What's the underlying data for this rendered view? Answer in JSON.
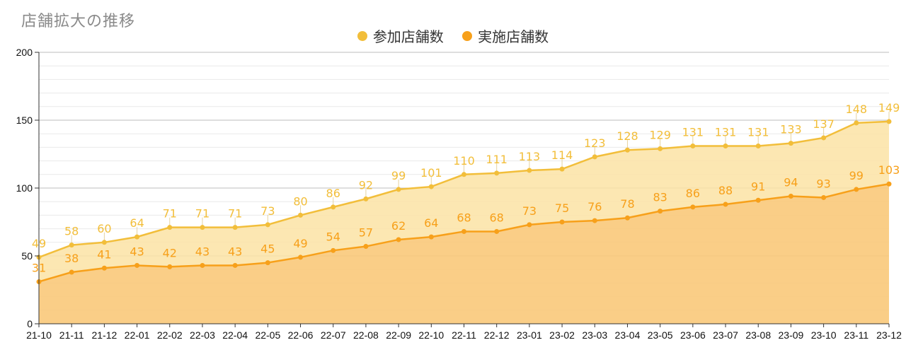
{
  "colors": {
    "participating": "#f2be3a",
    "implemented": "#f7a01a",
    "participating_fill": "#fbe3a4",
    "implemented_fill": "#f9c97a"
  },
  "chart_data": {
    "type": "area",
    "title": "店舗拡大の推移",
    "categories": [
      "21-10",
      "21-11",
      "21-12",
      "22-01",
      "22-02",
      "22-03",
      "22-04",
      "22-05",
      "22-06",
      "22-07",
      "22-08",
      "22-09",
      "22-10",
      "22-11",
      "22-12",
      "23-01",
      "23-02",
      "23-03",
      "23-04",
      "23-05",
      "23-06",
      "23-07",
      "23-08",
      "23-09",
      "23-10",
      "23-11",
      "23-12"
    ],
    "series": [
      {
        "name": "参加店舗数",
        "values": [
          49,
          58,
          60,
          64,
          71,
          71,
          71,
          73,
          80,
          86,
          92,
          99,
          101,
          110,
          111,
          113,
          114,
          123,
          128,
          129,
          131,
          131,
          131,
          133,
          137,
          148,
          149
        ]
      },
      {
        "name": "実施店舗数",
        "values": [
          31,
          38,
          41,
          43,
          42,
          43,
          43,
          45,
          49,
          54,
          57,
          62,
          64,
          68,
          68,
          73,
          75,
          76,
          78,
          83,
          86,
          88,
          91,
          94,
          93,
          99,
          103
        ]
      }
    ],
    "ylim": [
      0,
      200
    ],
    "yticks": [
      0,
      50,
      100,
      150,
      200
    ],
    "grid": true,
    "legend": "top-center"
  }
}
